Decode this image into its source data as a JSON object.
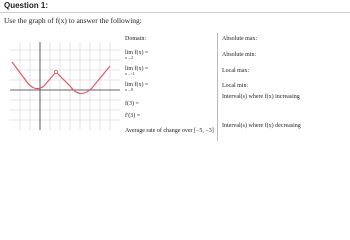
{
  "header": {
    "title": "Question 1:",
    "instruction": "Use the graph of f(x) to answer the following:"
  },
  "middle": {
    "items": [
      {
        "text": "Domain:"
      },
      {
        "text": "lim f(x) =",
        "sub": "x→2"
      },
      {
        "text": "lim f(x) =",
        "sub": "x→-1"
      },
      {
        "text": "lim f(x) =",
        "sub": "x→0"
      },
      {
        "text": "f(3) ="
      },
      {
        "text": "f′(3) ="
      },
      {
        "text": "Average rate of change over [−5, −3]"
      }
    ]
  },
  "right": {
    "items": [
      {
        "text": "Absolute max:"
      },
      {
        "text": "Absolute min:"
      },
      {
        "text": "Local max:"
      },
      {
        "text": "Local min:"
      },
      {
        "text": "Interval(s) where f(x) increasing"
      },
      {
        "text": "Interval(s) where f(x) decreasing"
      }
    ]
  }
}
